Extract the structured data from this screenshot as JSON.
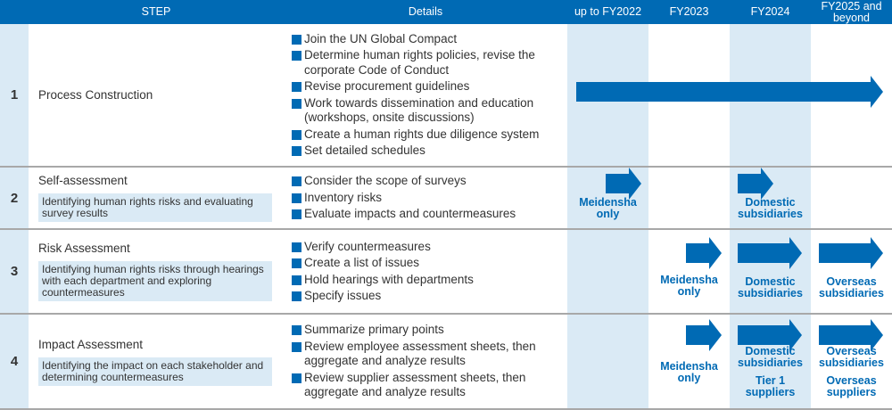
{
  "header": {
    "step": "STEP",
    "details": "Details",
    "fy2022": "up to FY2022",
    "fy2023": "FY2023",
    "fy2024": "FY2024",
    "fy2025": "FY2025 and beyond"
  },
  "colors": {
    "accent": "#006ab4",
    "shade": "#daeaf5"
  },
  "rows": [
    {
      "num": "1",
      "title": "Process Construction",
      "details": [
        "Join the UN Global Compact",
        "Determine human rights policies, revise the corporate Code of Conduct",
        "Revise procurement guidelines",
        "Work towards dissemination and education (workshops, onsite discussions)",
        "Create a human rights due diligence system",
        "Set detailed schedules"
      ]
    },
    {
      "num": "2",
      "title": "Self-assessment",
      "subtitle": "Identifying human rights risks and evaluating survey results",
      "details": [
        "Consider the scope of surveys",
        "Inventory risks",
        "Evaluate impacts and countermeasures"
      ],
      "labels": {
        "fy2022": "Meidensha only",
        "fy2024": "Domestic subsidiaries"
      }
    },
    {
      "num": "3",
      "title": "Risk Assessment",
      "subtitle": "Identifying human rights risks through hearings with each department and exploring countermeasures",
      "details": [
        "Verify countermeasures",
        "Create a list of issues",
        "Hold hearings with departments",
        "Specify issues"
      ],
      "labels": {
        "fy2023": "Meidensha only",
        "fy2024": "Domestic subsidiaries",
        "fy2025": "Overseas subsidiaries"
      }
    },
    {
      "num": "4",
      "title": "Impact Assessment",
      "subtitle": "Identifying the impact on each stakeholder and determining countermeasures",
      "details": [
        "Summarize primary points",
        "Review employee assessment sheets, then aggregate and analyze results",
        "Review supplier assessment sheets, then aggregate and analyze results"
      ],
      "labels": {
        "fy2023": "Meidensha only",
        "fy2024": "Domestic subsidiaries",
        "fy2024b": "Tier 1 suppliers",
        "fy2025": "Overseas subsidiaries",
        "fy2025b": "Overseas suppliers"
      }
    }
  ]
}
